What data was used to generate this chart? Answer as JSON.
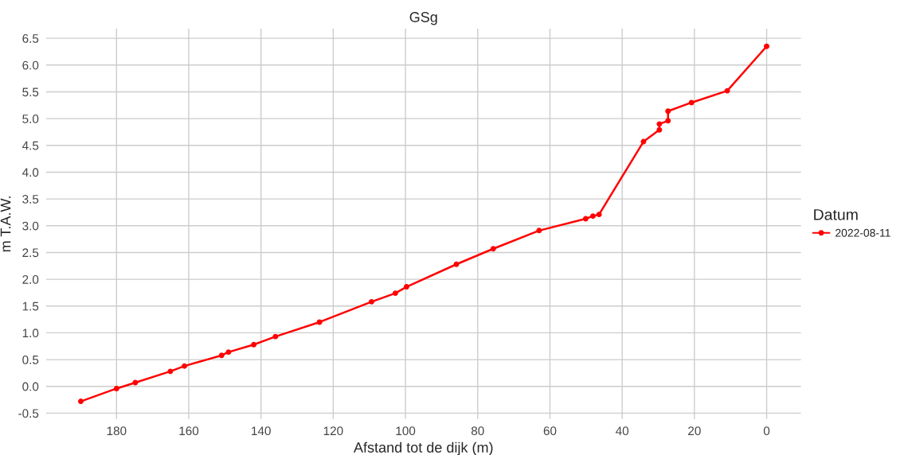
{
  "chart_data": {
    "type": "line",
    "title": "GSg",
    "xlabel": "Afstand tot de dijk (m)",
    "ylabel": "m T.A.W.",
    "legend_title": "Datum",
    "series": [
      {
        "name": "2022-08-11",
        "color": "#ff0000",
        "x": [
          189.9,
          180.0,
          174.8,
          165.1,
          161.2,
          150.9,
          149.0,
          142.0,
          136.0,
          123.8,
          109.4,
          102.8,
          99.7,
          85.9,
          75.7,
          63.0,
          50.1,
          48.1,
          46.4,
          34.1,
          29.7,
          29.7,
          27.3,
          27.3,
          20.8,
          10.9,
          0.0
        ],
        "values": [
          -0.28,
          -0.04,
          0.07,
          0.28,
          0.38,
          0.58,
          0.64,
          0.78,
          0.93,
          1.2,
          1.58,
          1.74,
          1.86,
          2.28,
          2.57,
          2.91,
          3.13,
          3.18,
          3.21,
          4.57,
          4.79,
          4.9,
          4.96,
          5.14,
          5.3,
          5.52,
          6.35
        ]
      }
    ],
    "xlim": [
      199.5,
      -9.5
    ],
    "xticks": [
      180,
      160,
      140,
      120,
      100,
      80,
      60,
      40,
      20,
      0
    ],
    "ylim": [
      -0.61,
      6.68
    ],
    "yticks": [
      {
        "value": -0.5,
        "label": "-0.5"
      },
      {
        "value": 0,
        "label": "0.0"
      },
      {
        "value": 0.5,
        "label": "0.5"
      },
      {
        "value": 1,
        "label": "1.0"
      },
      {
        "value": 1.5,
        "label": "1.5"
      },
      {
        "value": 2,
        "label": "2.0"
      },
      {
        "value": 2.5,
        "label": "2.5"
      },
      {
        "value": 3,
        "label": "3.0"
      },
      {
        "value": 3.5,
        "label": "3.5"
      },
      {
        "value": 4,
        "label": "4.0"
      },
      {
        "value": 4.5,
        "label": "4.5"
      },
      {
        "value": 5,
        "label": "5.0"
      },
      {
        "value": 5.5,
        "label": "5.5"
      },
      {
        "value": 6,
        "label": "6.0"
      },
      {
        "value": 6.5,
        "label": "6.5"
      }
    ],
    "grid": true,
    "legend": "right",
    "marker": "circle",
    "line_style": "solid"
  }
}
